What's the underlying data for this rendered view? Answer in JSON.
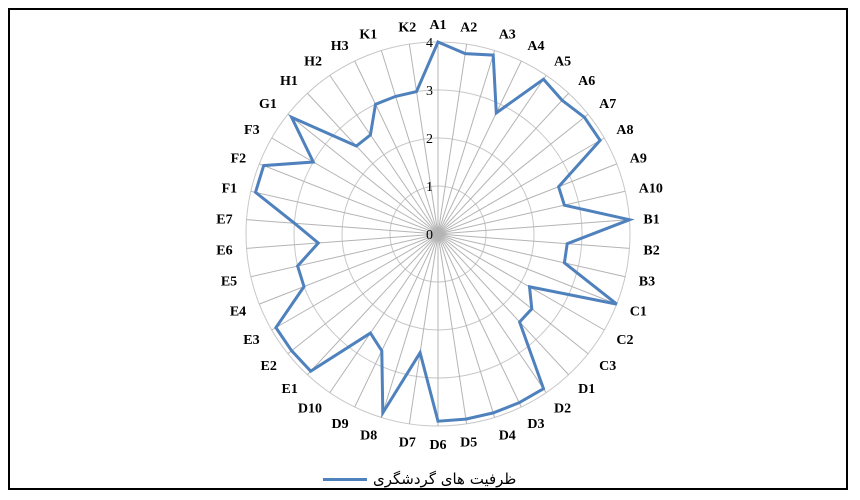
{
  "chart_data": {
    "type": "radar",
    "categories": [
      "A1",
      "A2",
      "A3",
      "A4",
      "A5",
      "A6",
      "A7",
      "A8",
      "A9",
      "A10",
      "B1",
      "B2",
      "B3",
      "C1",
      "C2",
      "C3",
      "D1",
      "D2",
      "D3",
      "D4",
      "D5",
      "D6",
      "D7",
      "D8",
      "D9",
      "D10",
      "E1",
      "E2",
      "E3",
      "E4",
      "E5",
      "E6",
      "E7",
      "F1",
      "F2",
      "F3",
      "G1",
      "H1",
      "H2",
      "H3",
      "K1",
      "K2"
    ],
    "series": [
      {
        "name": "ظرفیت های گردشگری",
        "color": "#4f81bd",
        "values": [
          4,
          3.8,
          3.9,
          2.8,
          3.9,
          3.8,
          3.9,
          3.9,
          2.7,
          2.7,
          4,
          2.7,
          2.7,
          4,
          2.2,
          2.5,
          2.5,
          3.9,
          3.9,
          3.9,
          3.9,
          3.9,
          2.5,
          3.9,
          2.7,
          2.5,
          3.9,
          3.9,
          3.9,
          3.0,
          3.0,
          2.5,
          3.0,
          3.9,
          3.9,
          3.0,
          3.9,
          2.5,
          2.5,
          3.0,
          3.0,
          3.0
        ]
      }
    ],
    "rlim": [
      0,
      4
    ],
    "ticks": [
      "0",
      "1",
      "2",
      "3",
      "4"
    ],
    "grid": true,
    "legend": "bottom"
  }
}
